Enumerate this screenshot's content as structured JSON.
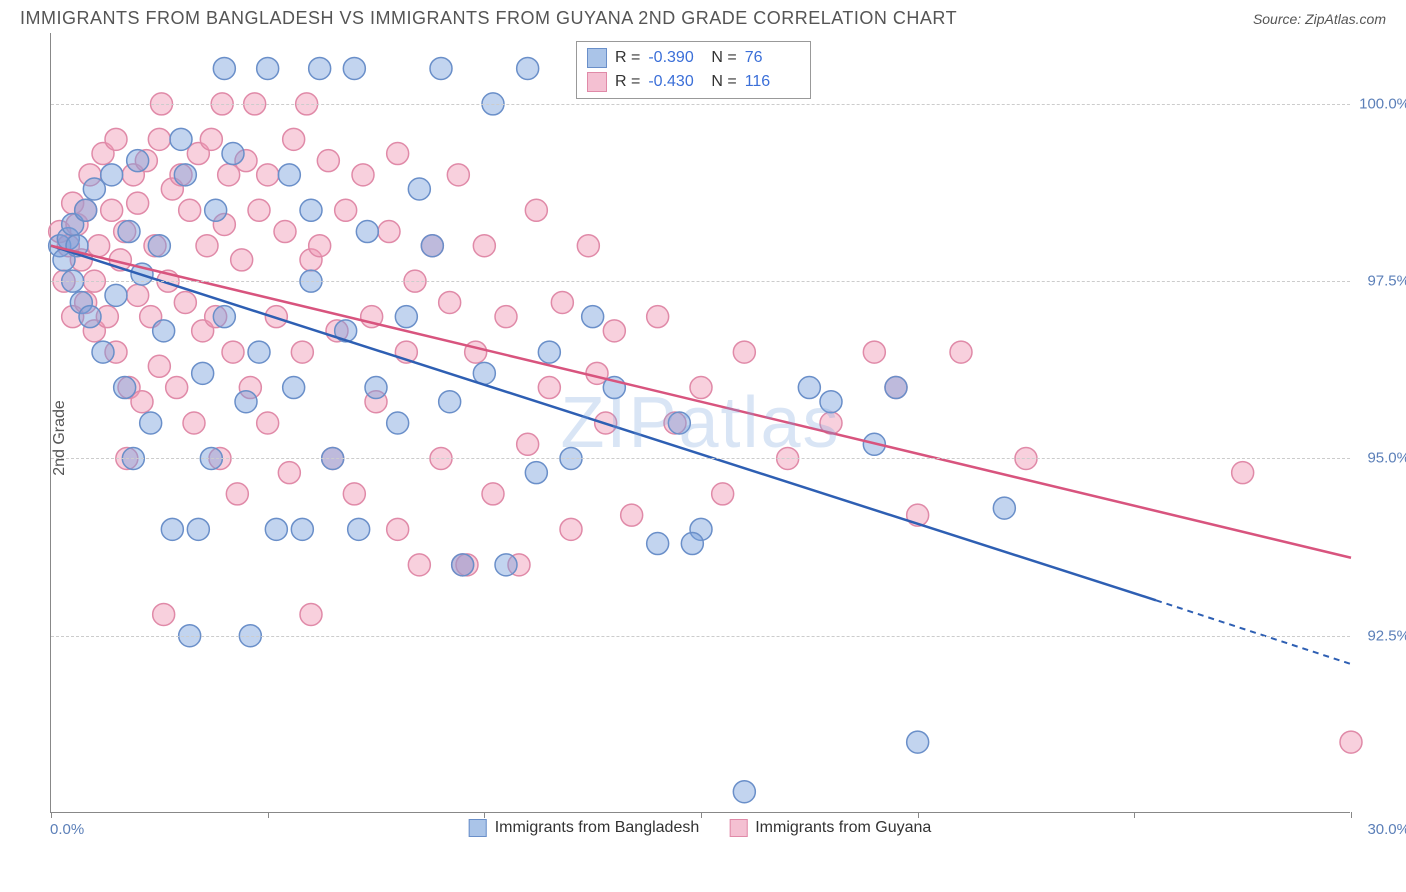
{
  "header": {
    "title": "IMMIGRANTS FROM BANGLADESH VS IMMIGRANTS FROM GUYANA 2ND GRADE CORRELATION CHART",
    "source": "Source: ZipAtlas.com"
  },
  "chart": {
    "type": "scatter",
    "ylabel": "2nd Grade",
    "watermark": "ZIPatlas",
    "background_color": "#ffffff",
    "grid_color": "#cccccc",
    "axis_color": "#888888",
    "tick_label_color": "#5b7fb8",
    "xlim": [
      0,
      30
    ],
    "ylim": [
      90,
      101
    ],
    "xtick_positions": [
      0,
      5,
      10,
      15,
      20,
      25,
      30
    ],
    "xlabel_min": "0.0%",
    "xlabel_max": "30.0%",
    "yticks": [
      {
        "value": 92.5,
        "label": "92.5%"
      },
      {
        "value": 95.0,
        "label": "95.0%"
      },
      {
        "value": 97.5,
        "label": "97.5%"
      },
      {
        "value": 100.0,
        "label": "100.0%"
      }
    ],
    "series": [
      {
        "id": "bangladesh",
        "label": "Immigrants from Bangladesh",
        "fill_color": "rgba(120,160,220,0.45)",
        "stroke_color": "#6a8fc9",
        "line_color": "#2e5fb3",
        "swatch_fill": "#aac4e8",
        "swatch_border": "#6a8fc9",
        "R": "-0.390",
        "N": "76",
        "trend": {
          "x1": 0,
          "y1": 98.0,
          "x2": 25.5,
          "y2": 93.0,
          "x_ext": 30,
          "y_ext": 92.1
        },
        "marker_radius": 11,
        "points": [
          [
            0.2,
            98.0
          ],
          [
            0.3,
            97.8
          ],
          [
            0.4,
            98.1
          ],
          [
            0.5,
            97.5
          ],
          [
            0.5,
            98.3
          ],
          [
            0.6,
            98.0
          ],
          [
            0.7,
            97.2
          ],
          [
            0.8,
            98.5
          ],
          [
            0.9,
            97.0
          ],
          [
            1.0,
            98.8
          ],
          [
            1.2,
            96.5
          ],
          [
            1.4,
            99.0
          ],
          [
            1.5,
            97.3
          ],
          [
            1.7,
            96.0
          ],
          [
            1.8,
            98.2
          ],
          [
            2.0,
            99.2
          ],
          [
            2.1,
            97.6
          ],
          [
            2.3,
            95.5
          ],
          [
            2.5,
            98.0
          ],
          [
            2.6,
            96.8
          ],
          [
            2.8,
            94.0
          ],
          [
            3.0,
            99.5
          ],
          [
            3.1,
            99.0
          ],
          [
            3.2,
            92.5
          ],
          [
            3.5,
            96.2
          ],
          [
            3.7,
            95.0
          ],
          [
            3.8,
            98.5
          ],
          [
            4.0,
            100.5
          ],
          [
            4.0,
            97.0
          ],
          [
            4.2,
            99.3
          ],
          [
            4.5,
            95.8
          ],
          [
            4.6,
            92.5
          ],
          [
            4.8,
            96.5
          ],
          [
            5.0,
            100.5
          ],
          [
            5.2,
            94.0
          ],
          [
            5.5,
            99.0
          ],
          [
            5.6,
            96.0
          ],
          [
            5.8,
            94.0
          ],
          [
            6.0,
            98.5
          ],
          [
            6.0,
            97.5
          ],
          [
            6.2,
            100.5
          ],
          [
            6.5,
            95.0
          ],
          [
            6.8,
            96.8
          ],
          [
            7.0,
            100.5
          ],
          [
            7.1,
            94.0
          ],
          [
            7.3,
            98.2
          ],
          [
            7.5,
            96.0
          ],
          [
            8.0,
            95.5
          ],
          [
            8.2,
            97.0
          ],
          [
            8.5,
            98.8
          ],
          [
            9.0,
            100.5
          ],
          [
            9.2,
            95.8
          ],
          [
            9.5,
            93.5
          ],
          [
            10.0,
            96.2
          ],
          [
            10.2,
            100.0
          ],
          [
            10.5,
            93.5
          ],
          [
            11.0,
            100.5
          ],
          [
            11.2,
            94.8
          ],
          [
            11.5,
            96.5
          ],
          [
            12.0,
            95.0
          ],
          [
            12.5,
            97.0
          ],
          [
            13.0,
            96.0
          ],
          [
            14.0,
            93.8
          ],
          [
            14.5,
            95.5
          ],
          [
            15.0,
            94.0
          ],
          [
            16.0,
            90.3
          ],
          [
            17.5,
            96.0
          ],
          [
            18.0,
            95.8
          ],
          [
            19.0,
            95.2
          ],
          [
            19.5,
            96.0
          ],
          [
            20.0,
            91.0
          ],
          [
            22.0,
            94.3
          ],
          [
            14.8,
            93.8
          ],
          [
            8.8,
            98.0
          ],
          [
            3.4,
            94.0
          ],
          [
            1.9,
            95.0
          ]
        ]
      },
      {
        "id": "guyana",
        "label": "Immigrants from Guyana",
        "fill_color": "rgba(240,150,180,0.45)",
        "stroke_color": "#e08aa8",
        "line_color": "#d8547e",
        "swatch_fill": "#f4c0d2",
        "swatch_border": "#e08aa8",
        "R": "-0.430",
        "N": "116",
        "trend": {
          "x1": 0,
          "y1": 98.0,
          "x2": 30,
          "y2": 93.6,
          "x_ext": 30,
          "y_ext": 93.6
        },
        "marker_radius": 11,
        "points": [
          [
            0.2,
            98.2
          ],
          [
            0.3,
            97.5
          ],
          [
            0.4,
            98.0
          ],
          [
            0.5,
            98.6
          ],
          [
            0.5,
            97.0
          ],
          [
            0.6,
            98.3
          ],
          [
            0.7,
            97.8
          ],
          [
            0.8,
            97.2
          ],
          [
            0.8,
            98.5
          ],
          [
            0.9,
            99.0
          ],
          [
            1.0,
            97.5
          ],
          [
            1.0,
            96.8
          ],
          [
            1.1,
            98.0
          ],
          [
            1.2,
            99.3
          ],
          [
            1.3,
            97.0
          ],
          [
            1.4,
            98.5
          ],
          [
            1.5,
            96.5
          ],
          [
            1.5,
            99.5
          ],
          [
            1.6,
            97.8
          ],
          [
            1.7,
            98.2
          ],
          [
            1.8,
            96.0
          ],
          [
            1.9,
            99.0
          ],
          [
            2.0,
            97.3
          ],
          [
            2.0,
            98.6
          ],
          [
            2.1,
            95.8
          ],
          [
            2.2,
            99.2
          ],
          [
            2.3,
            97.0
          ],
          [
            2.4,
            98.0
          ],
          [
            2.5,
            96.3
          ],
          [
            2.5,
            99.5
          ],
          [
            2.6,
            92.8
          ],
          [
            2.7,
            97.5
          ],
          [
            2.8,
            98.8
          ],
          [
            2.9,
            96.0
          ],
          [
            3.0,
            99.0
          ],
          [
            3.1,
            97.2
          ],
          [
            3.2,
            98.5
          ],
          [
            3.3,
            95.5
          ],
          [
            3.4,
            99.3
          ],
          [
            3.5,
            96.8
          ],
          [
            3.6,
            98.0
          ],
          [
            3.7,
            99.5
          ],
          [
            3.8,
            97.0
          ],
          [
            3.9,
            95.0
          ],
          [
            4.0,
            98.3
          ],
          [
            4.1,
            99.0
          ],
          [
            4.2,
            96.5
          ],
          [
            4.3,
            94.5
          ],
          [
            4.4,
            97.8
          ],
          [
            4.5,
            99.2
          ],
          [
            4.6,
            96.0
          ],
          [
            4.8,
            98.5
          ],
          [
            5.0,
            95.5
          ],
          [
            5.0,
            99.0
          ],
          [
            5.2,
            97.0
          ],
          [
            5.4,
            98.2
          ],
          [
            5.5,
            94.8
          ],
          [
            5.6,
            99.5
          ],
          [
            5.8,
            96.5
          ],
          [
            6.0,
            97.8
          ],
          [
            6.0,
            92.8
          ],
          [
            6.2,
            98.0
          ],
          [
            6.4,
            99.2
          ],
          [
            6.5,
            95.0
          ],
          [
            6.6,
            96.8
          ],
          [
            6.8,
            98.5
          ],
          [
            7.0,
            94.5
          ],
          [
            7.2,
            99.0
          ],
          [
            7.4,
            97.0
          ],
          [
            7.5,
            95.8
          ],
          [
            7.8,
            98.2
          ],
          [
            8.0,
            94.0
          ],
          [
            8.0,
            99.3
          ],
          [
            8.2,
            96.5
          ],
          [
            8.4,
            97.5
          ],
          [
            8.5,
            93.5
          ],
          [
            8.8,
            98.0
          ],
          [
            9.0,
            95.0
          ],
          [
            9.2,
            97.2
          ],
          [
            9.4,
            99.0
          ],
          [
            9.5,
            93.5
          ],
          [
            9.8,
            96.5
          ],
          [
            10.0,
            98.0
          ],
          [
            10.2,
            94.5
          ],
          [
            10.5,
            97.0
          ],
          [
            10.8,
            93.5
          ],
          [
            11.0,
            95.2
          ],
          [
            11.2,
            98.5
          ],
          [
            11.5,
            96.0
          ],
          [
            11.8,
            97.2
          ],
          [
            12.0,
            94.0
          ],
          [
            12.4,
            98.0
          ],
          [
            12.8,
            95.5
          ],
          [
            13.0,
            96.8
          ],
          [
            13.4,
            94.2
          ],
          [
            14.0,
            97.0
          ],
          [
            14.4,
            95.5
          ],
          [
            15.0,
            96.0
          ],
          [
            15.5,
            94.5
          ],
          [
            16.0,
            96.5
          ],
          [
            17.0,
            95.0
          ],
          [
            18.0,
            95.5
          ],
          [
            19.0,
            96.5
          ],
          [
            19.5,
            96.0
          ],
          [
            20.0,
            94.2
          ],
          [
            21.0,
            96.5
          ],
          [
            22.5,
            95.0
          ],
          [
            27.5,
            94.8
          ],
          [
            30.0,
            91.0
          ],
          [
            12.6,
            96.2
          ],
          [
            4.7,
            100.0
          ],
          [
            5.9,
            100.0
          ],
          [
            3.95,
            100.0
          ],
          [
            9.6,
            93.5
          ],
          [
            2.55,
            100.0
          ],
          [
            1.75,
            95.0
          ]
        ]
      }
    ],
    "bottom_legend": [
      {
        "series": "bangladesh"
      },
      {
        "series": "guyana"
      }
    ]
  }
}
